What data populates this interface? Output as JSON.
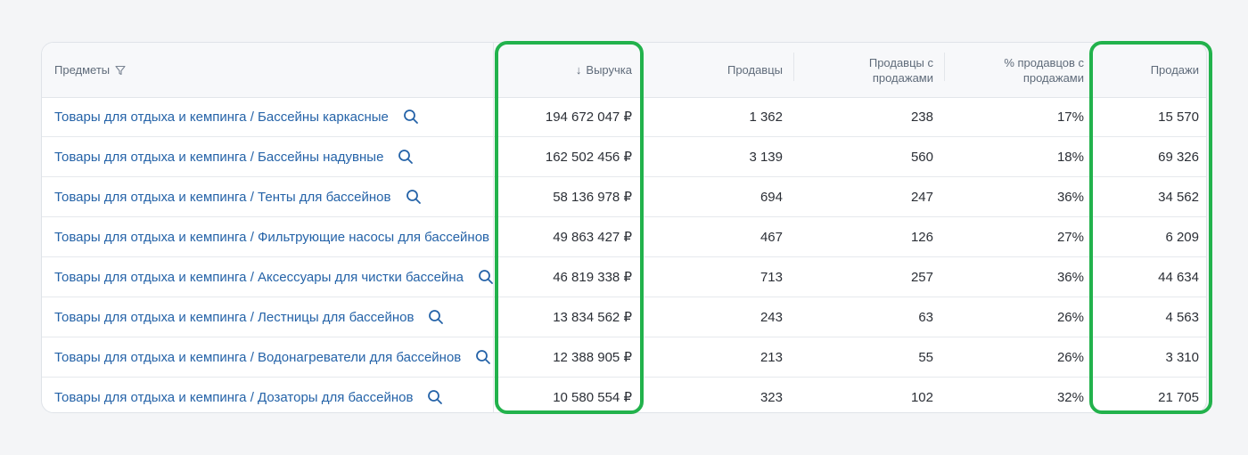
{
  "table": {
    "columns": {
      "subject": "Предметы",
      "revenue": "Выручка",
      "sellers": "Продавцы",
      "sellers_with_sales": "Продавцы с продажами",
      "pct_sellers_with_sales": "% продавцов с продажами",
      "sales": "Продажи"
    },
    "sort_indicator": "↓",
    "rows": [
      {
        "subject": "Товары для отдыха и кемпинга / Бассейны каркасные",
        "revenue": "194 672 047 ₽",
        "sellers": "1 362",
        "sellers_with_sales": "238",
        "pct": "17%",
        "sales": "15 570"
      },
      {
        "subject": "Товары для отдыха и кемпинга / Бассейны надувные",
        "revenue": "162 502 456 ₽",
        "sellers": "3 139",
        "sellers_with_sales": "560",
        "pct": "18%",
        "sales": "69 326"
      },
      {
        "subject": "Товары для отдыха и кемпинга / Тенты для бассейнов",
        "revenue": "58 136 978 ₽",
        "sellers": "694",
        "sellers_with_sales": "247",
        "pct": "36%",
        "sales": "34 562"
      },
      {
        "subject": "Товары для отдыха и кемпинга / Фильтрующие насосы для бассейнов",
        "revenue": "49 863 427 ₽",
        "sellers": "467",
        "sellers_with_sales": "126",
        "pct": "27%",
        "sales": "6 209"
      },
      {
        "subject": "Товары для отдыха и кемпинга / Аксессуары для чистки бассейна",
        "revenue": "46 819 338 ₽",
        "sellers": "713",
        "sellers_with_sales": "257",
        "pct": "36%",
        "sales": "44 634"
      },
      {
        "subject": "Товары для отдыха и кемпинга / Лестницы для бассейнов",
        "revenue": "13 834 562 ₽",
        "sellers": "243",
        "sellers_with_sales": "63",
        "pct": "26%",
        "sales": "4 563"
      },
      {
        "subject": "Товары для отдыха и кемпинга / Водонагреватели для бассейнов",
        "revenue": "12 388 905 ₽",
        "sellers": "213",
        "sellers_with_sales": "55",
        "pct": "26%",
        "sales": "3 310"
      },
      {
        "subject": "Товары для отдыха и кемпинга / Дозаторы для бассейнов",
        "revenue": "10 580 554 ₽",
        "sellers": "323",
        "sellers_with_sales": "102",
        "pct": "32%",
        "sales": "21 705"
      }
    ]
  },
  "colors": {
    "link": "#2563a8",
    "highlight": "#22b24c"
  },
  "icons": {
    "filter": "filter-icon",
    "search": "search-icon"
  }
}
